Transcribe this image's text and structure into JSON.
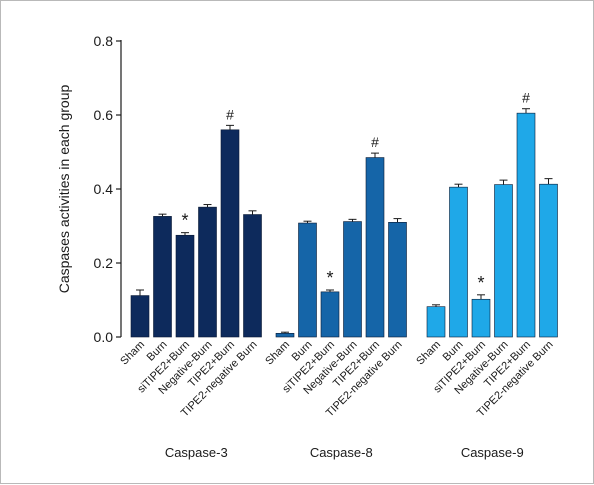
{
  "chart_data": {
    "type": "bar",
    "title": "",
    "xlabel": "",
    "ylabel": "Caspases activities in each group",
    "ylim": [
      0,
      0.8
    ],
    "yticks": [
      0.0,
      0.2,
      0.4,
      0.6,
      0.8
    ],
    "ytick_labels": [
      "0.0",
      "0.2",
      "0.4",
      "0.6",
      "0.8"
    ],
    "grid": false,
    "legend": "none",
    "categories": [
      "Sham",
      "Burn",
      "siTIPE2+Burn",
      "Negative-Burn",
      "TIPE2+Burn",
      "TIPE2-negative Burn"
    ],
    "groups": [
      {
        "name": "Caspase-3",
        "color": "#0d2a5c",
        "values": [
          0.112,
          0.326,
          0.275,
          0.351,
          0.56,
          0.331
        ],
        "errors": [
          0.015,
          0.006,
          0.007,
          0.007,
          0.012,
          0.01
        ],
        "annotations": [
          "",
          "",
          "*",
          "",
          "#",
          ""
        ]
      },
      {
        "name": "Caspase-8",
        "color": "#1565a8",
        "values": [
          0.01,
          0.308,
          0.122,
          0.312,
          0.485,
          0.31
        ],
        "errors": [
          0.003,
          0.005,
          0.005,
          0.006,
          0.012,
          0.01
        ],
        "annotations": [
          "",
          "",
          "*",
          "",
          "#",
          ""
        ]
      },
      {
        "name": "Caspase-9",
        "color": "#1fa8e8",
        "values": [
          0.082,
          0.405,
          0.102,
          0.412,
          0.605,
          0.413
        ],
        "errors": [
          0.005,
          0.008,
          0.012,
          0.012,
          0.012,
          0.015
        ],
        "annotations": [
          "",
          "",
          "*",
          "",
          "#",
          ""
        ]
      }
    ]
  }
}
